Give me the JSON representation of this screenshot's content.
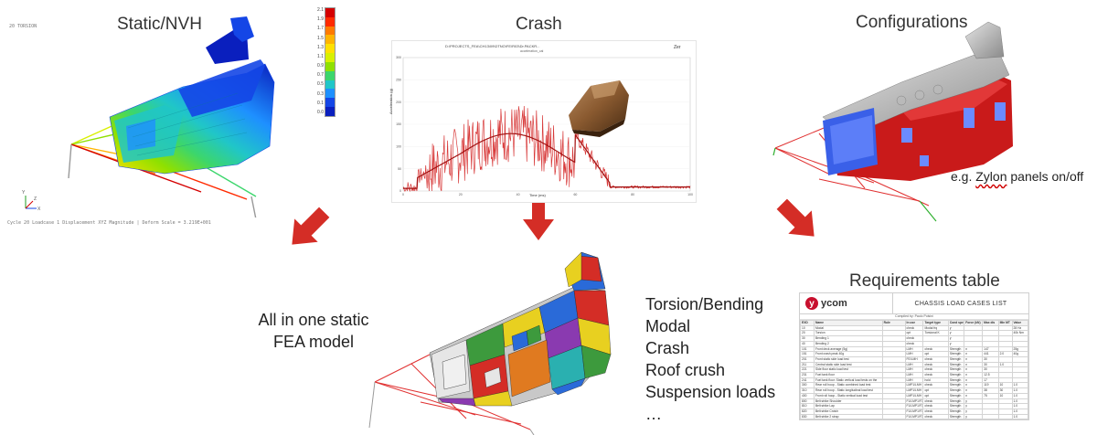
{
  "titles": {
    "static": "Static/NVH",
    "crash": "Crash",
    "configurations": "Configurations",
    "requirements": "Requirements table"
  },
  "static_panel": {
    "corner_label": "20 TORSION",
    "footer": "Cycle 20 Loadcase 1 Displacement XYZ Magnitude | Deform Scale = 3.219E+001",
    "legend_values": [
      "2.1",
      "1.9",
      "1.7",
      "1.5",
      "1.3",
      "1.1",
      "0.9",
      "0.7",
      "0.5",
      "0.3",
      "0.1",
      "0.0"
    ],
    "legend_colors": [
      "#d40000",
      "#ff2a00",
      "#ff7a00",
      "#ffb400",
      "#ffe000",
      "#d8f000",
      "#8fe000",
      "#3cd66c",
      "#20c6c8",
      "#1e90ff",
      "#1446e6",
      "#0a1fbe"
    ],
    "axis_labels": {
      "y": "Y",
      "z": "Z",
      "x": "X"
    }
  },
  "crash_panel": {
    "plot_title": "D:\\PROJECTS_FEA\\CH13\\09\\DTNO\\FE\\R03\\Dr.PACKR...",
    "plot_subtitle": "acceleration_cal",
    "xlabel": "Time (ms)",
    "ylabel": "Acceleration (g)",
    "y_ticks": [
      "300",
      "250",
      "200",
      "150",
      "100",
      "50",
      "0"
    ],
    "x_ticks": [
      "0",
      "20",
      "40",
      "60",
      "80",
      "100"
    ],
    "corner_tag": "Zer"
  },
  "configurations_panel": {
    "note_prefix": "e.g. ",
    "note_word": "Zylon",
    "note_suffix": " panels on/off"
  },
  "center": {
    "line1": "All in one static",
    "line2": "FEA model"
  },
  "load_cases_list": [
    "Torsion/Bending",
    "Modal",
    "Crash",
    "Roof crush",
    "Suspension loads",
    "…"
  ],
  "requirements_table": {
    "logo_text": "ycom",
    "doc_title": "CHASSIS LOAD CASES LIST",
    "compiled_by": "Compiled by: Paolo Polsini",
    "columns": [
      "EXD",
      "Name",
      "Rule",
      "In use",
      "Target type",
      "Cond spec",
      "Force (kN)",
      "Max dis",
      "Min MT",
      "Value"
    ],
    "rows": [
      [
        "10",
        "Modal",
        "",
        "check",
        "Modal frq",
        "y",
        "",
        "",
        "",
        "28 Hz"
      ],
      [
        "20",
        "Torsion",
        "",
        "opt",
        "Torsional K",
        "y",
        "",
        "",
        "",
        "40k Nm"
      ],
      [
        "30",
        "Bending 1",
        "",
        "check",
        "",
        "y",
        "",
        "",
        "",
        ""
      ],
      [
        "40",
        "Bending 2",
        "",
        "check",
        "",
        "y",
        "",
        "",
        "",
        ""
      ],
      [
        "101",
        "Front deck average (5g)",
        "",
        "LMH",
        "check",
        "Strength",
        "n",
        "147",
        "",
        "25g"
      ],
      [
        "151",
        "Front crash peak 40g",
        "",
        "LMH",
        "opt",
        "Strength",
        "n",
        "441",
        "2.0",
        "40g"
      ],
      [
        "201",
        "Front static side load test",
        "",
        "FE/LMH",
        "check",
        "Strength",
        "n",
        "30",
        "",
        ""
      ],
      [
        "211",
        "Central static side load test",
        "",
        "LMH",
        "check",
        "Strength",
        "n",
        "30",
        "1.0",
        ""
      ],
      [
        "221",
        "Side floor static load test",
        "",
        "LMH",
        "check",
        "Strength",
        "n",
        "30",
        "",
        ""
      ],
      [
        "231",
        "Fuel tank floor",
        "",
        "LMH",
        "check",
        "Strength",
        "n",
        "12.5",
        "",
        ""
      ],
      [
        "241",
        "Fuel tank floor: Static vertical load tests on the",
        "",
        "LMH",
        "hold",
        "Strength",
        "n",
        "17",
        "",
        ""
      ],
      [
        "300",
        "Rear roll hoop - Static combined load test",
        "",
        "LMP1/LMH",
        "check",
        "Strength",
        "n",
        "119",
        "10",
        "1.0"
      ],
      [
        "310",
        "Rear roll hoop - Static longitudinal load test",
        "",
        "LMP1/LMH",
        "opt",
        "Strength",
        "n",
        "38",
        "30",
        "1.0"
      ],
      [
        "400",
        "Front roll hoop - Static vertical load test",
        "",
        "LMP1/LMH",
        "opt",
        "Strength",
        "n",
        "75",
        "10",
        "1.0"
      ],
      [
        "800",
        "Belt strike Shoulder",
        "",
        "F1/LMP1/F3",
        "check",
        "Strength",
        "y",
        "",
        "",
        "1.0"
      ],
      [
        "810",
        "Belt strike Lap",
        "",
        "F1/LMP1/F3",
        "check",
        "Strength",
        "y",
        "",
        "",
        "1.0"
      ],
      [
        "820",
        "Belt strike Crotch",
        "",
        "F1/LMP1/F3",
        "check",
        "Strength",
        "y",
        "",
        "",
        "1.0"
      ],
      [
        "830",
        "Belt strike 2 strap",
        "",
        "F1/LMP1/F3",
        "check",
        "Strength",
        "y",
        "",
        "",
        "1.0"
      ]
    ]
  },
  "colors": {
    "arrow": "#d42d26",
    "fea_red": "#c91a1a",
    "fea_blue": "#1a3ad8",
    "crash_curve": "#d83a3a"
  }
}
